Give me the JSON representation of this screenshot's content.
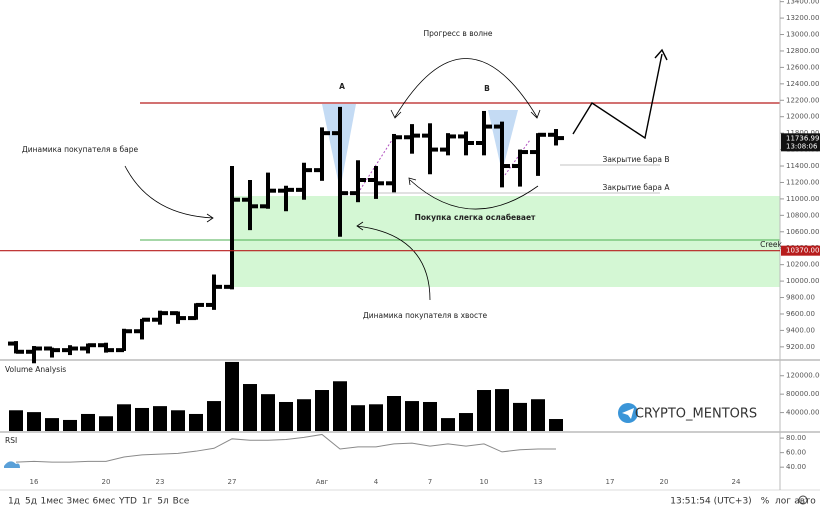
{
  "chart_data": [
    {
      "type": "ohlc",
      "color": "#000000",
      "categories": [
        null,
        "16",
        null,
        null,
        null,
        "20",
        null,
        null,
        "23",
        null,
        null,
        null,
        "27",
        null,
        null,
        null,
        null,
        "Авг",
        null,
        null,
        "4",
        null,
        null,
        "7",
        null,
        null,
        "10",
        null,
        null,
        "13",
        null,
        null,
        null,
        "17",
        null,
        null,
        "20",
        null,
        null,
        null,
        "24",
        null,
        null
      ],
      "open": [
        9240,
        9140,
        9180,
        9160,
        9180,
        9220,
        9160,
        9390,
        9530,
        9610,
        9550,
        9710,
        9930,
        10990,
        10910,
        11100,
        11110,
        11350,
        11800,
        11070,
        11230,
        11190,
        11750,
        11770,
        11600,
        11760,
        11680,
        11880,
        11400,
        11570,
        11780,
        null,
        null,
        null,
        null,
        null,
        null,
        null,
        null,
        null,
        null,
        null,
        null
      ],
      "high": [
        9270,
        9210,
        9190,
        9220,
        9240,
        9250,
        9420,
        9540,
        9640,
        9630,
        9730,
        10080,
        11400,
        11230,
        11320,
        11160,
        11440,
        11870,
        12120,
        11470,
        11400,
        11790,
        11910,
        11920,
        11800,
        11820,
        12070,
        11940,
        11600,
        11800,
        11850,
        null,
        null,
        null,
        null,
        null,
        null,
        null,
        null,
        null,
        null,
        null,
        null
      ],
      "low": [
        9120,
        9000,
        9070,
        9100,
        9120,
        9130,
        9150,
        9290,
        9470,
        9480,
        9530,
        9650,
        9900,
        10620,
        10880,
        10850,
        10990,
        11220,
        10540,
        10960,
        11000,
        11080,
        11550,
        11300,
        11530,
        11530,
        11530,
        11140,
        11150,
        11280,
        11650,
        null,
        null,
        null,
        null,
        null,
        null,
        null,
        null,
        null,
        null,
        null,
        null
      ],
      "close": [
        9140,
        9180,
        9160,
        9180,
        9220,
        9160,
        9390,
        9530,
        9610,
        9550,
        9710,
        9930,
        10990,
        10910,
        11100,
        11110,
        11350,
        11800,
        11070,
        11230,
        11190,
        11750,
        11770,
        11600,
        11760,
        11680,
        11880,
        11400,
        11570,
        11780,
        11740,
        null,
        null,
        null,
        null,
        null,
        null,
        null,
        null,
        null,
        null,
        null,
        null
      ],
      "ylim": [
        9040,
        13420
      ],
      "yticks": [
        {
          "value": 9200,
          "label": "9200.00"
        },
        {
          "value": 9400,
          "label": "9400.00"
        },
        {
          "value": 9600,
          "label": "9600.00"
        },
        {
          "value": 9800,
          "label": "9800.00"
        },
        {
          "value": 10000,
          "label": "10000.00"
        },
        {
          "value": 10200,
          "label": "10200.00"
        },
        {
          "value": 10400,
          "label": "10400.00"
        },
        {
          "value": 10600,
          "label": "10600.00"
        },
        {
          "value": 10800,
          "label": "10800.00"
        },
        {
          "value": 11000,
          "label": "11000.00"
        },
        {
          "value": 11200,
          "label": "11200.00"
        },
        {
          "value": 11400,
          "label": "11400.00"
        },
        {
          "value": 11600,
          "label": "11600.00"
        },
        {
          "value": 11800,
          "label": "11800.00"
        },
        {
          "value": 12000,
          "label": "12000.00"
        },
        {
          "value": 12200,
          "label": "12200.00"
        },
        {
          "value": 12400,
          "label": "12400.00"
        },
        {
          "value": 12600,
          "label": "12600.00"
        },
        {
          "value": 12800,
          "label": "12800.00"
        },
        {
          "value": 13000,
          "label": "13000.00"
        },
        {
          "value": 13200,
          "label": "13200.00"
        },
        {
          "value": 13400,
          "label": "13400.00"
        }
      ],
      "last_price": {
        "value": 11736.99,
        "label": "11736.99"
      },
      "countdown": "13:08:06",
      "level": {
        "value": 10370,
        "label": "10370.00",
        "color": "#b71c1c"
      },
      "annotations": [
        "Прогресс в волне",
        "A",
        "B",
        "Динамика покупателя в баре",
        "Закрытие бара В",
        "Закрытие бара А",
        "Покупка слегка ослабевает",
        "Creek",
        "Динамика покупателя в хвосте"
      ]
    },
    {
      "type": "bar",
      "title": "Volume Analysis",
      "color": "#000000",
      "values": [
        45000,
        41000,
        28000,
        24000,
        37000,
        32000,
        58000,
        50000,
        54000,
        45000,
        37000,
        65000,
        150000,
        102000,
        80000,
        63000,
        69000,
        89000,
        108000,
        56000,
        58000,
        76000,
        65000,
        63000,
        28000,
        39000,
        89000,
        91000,
        61000,
        69000,
        26000,
        null,
        null,
        null,
        null,
        null,
        null,
        null,
        null,
        null,
        null,
        null,
        null
      ],
      "ylim": [
        0,
        152000
      ],
      "yticks": [
        {
          "value": 40000,
          "label": "40000.00"
        },
        {
          "value": 80000,
          "label": "80000.00"
        },
        {
          "value": 120000,
          "label": "120000.00"
        }
      ]
    },
    {
      "type": "line",
      "title": "RSI",
      "color": "#8a8a8a",
      "values": [
        47,
        48,
        47,
        47,
        48,
        48,
        54,
        57,
        58,
        59,
        62,
        66,
        79,
        77,
        77,
        78,
        81,
        85,
        65,
        68,
        68,
        72,
        73,
        69,
        72,
        69,
        72,
        61,
        64,
        65,
        65,
        null,
        null,
        null,
        null,
        null,
        null,
        null,
        null,
        null,
        null,
        null,
        null
      ],
      "ylim": [
        21,
        87
      ],
      "yticks": [
        {
          "value": 40,
          "label": "40.00"
        },
        {
          "value": 60,
          "label": "60.00"
        },
        {
          "value": 80,
          "label": "80.00"
        }
      ]
    }
  ],
  "watermark": "CRYPTO_MENTORS",
  "toolbar": {
    "ranges": [
      "1д",
      "5д",
      "1мес",
      "3мес",
      "6мес",
      "YTD",
      "1г",
      "5л",
      "Все"
    ],
    "time": "13:51:54 (UTC+3)",
    "options": [
      "%",
      "лог",
      "авто"
    ]
  }
}
